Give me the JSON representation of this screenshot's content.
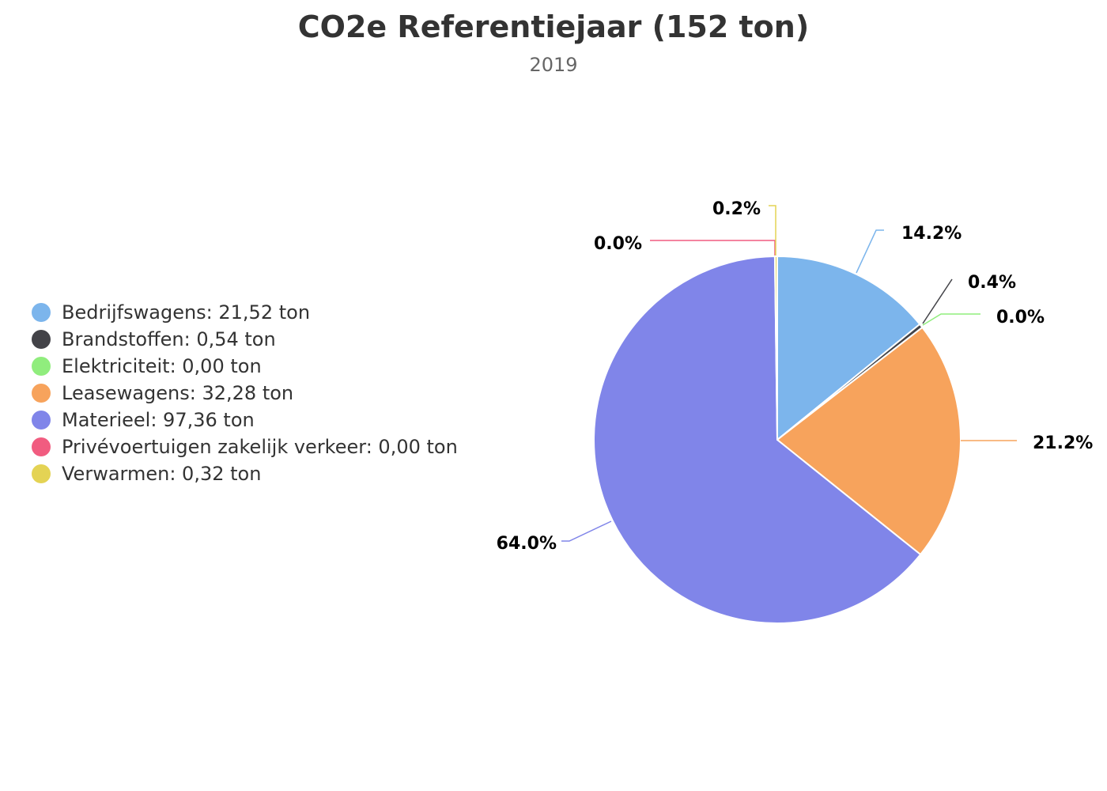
{
  "chart_data": {
    "type": "pie",
    "title": "CO2e Referentiejaar (152 ton)",
    "subtitle": "2019",
    "legend_position": "left",
    "unit": "ton",
    "slices": [
      {
        "name": "Bedrijfswagens",
        "value": 21.52,
        "value_label": "21,52",
        "percent_label": "14.2%",
        "color": "#7cb5ec"
      },
      {
        "name": "Brandstoffen",
        "value": 0.54,
        "value_label": "0,54",
        "percent_label": "0.4%",
        "color": "#434348"
      },
      {
        "name": "Elektriciteit",
        "value": 0.0,
        "value_label": "0,00",
        "percent_label": "0.0%",
        "color": "#90ed7d"
      },
      {
        "name": "Leasewagens",
        "value": 32.28,
        "value_label": "32,28",
        "percent_label": "21.2%",
        "color": "#f7a35c"
      },
      {
        "name": "Materieel",
        "value": 97.36,
        "value_label": "97,36",
        "percent_label": "64.0%",
        "color": "#8085e9"
      },
      {
        "name": "Privévoertuigen zakelijk verkeer",
        "value": 0.0,
        "value_label": "0,00",
        "percent_label": "0.0%",
        "color": "#f15c80"
      },
      {
        "name": "Verwarmen",
        "value": 0.32,
        "value_label": "0,32",
        "percent_label": "0.2%",
        "color": "#e4d354"
      }
    ]
  }
}
